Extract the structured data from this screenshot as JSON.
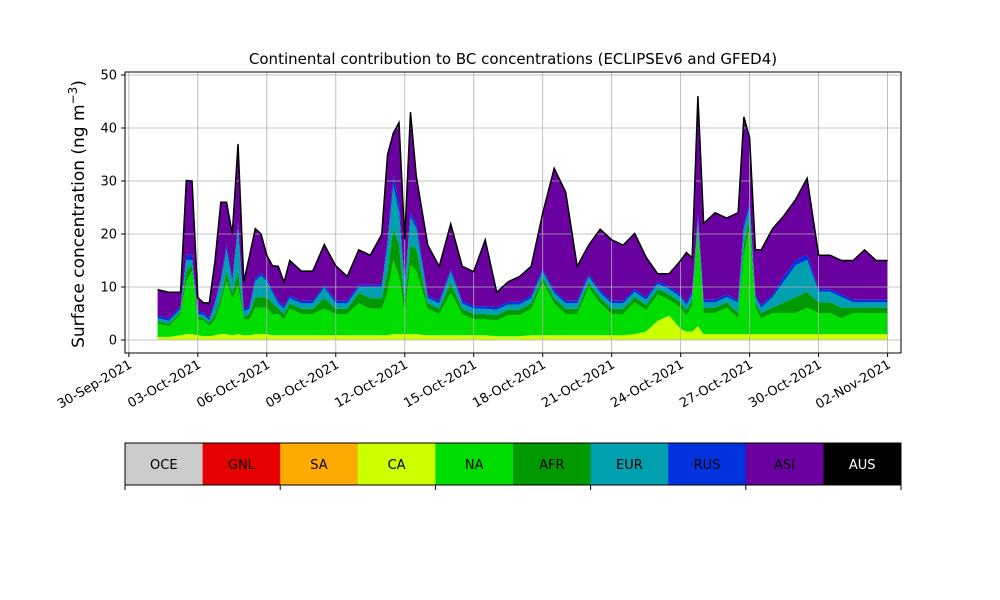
{
  "chart_data": {
    "type": "area",
    "stacked": true,
    "title": "Continental contribution to BC concentrations (ECLIPSEv6 and GFED4)",
    "ylabel": "Surface concentration (ng m",
    "ylabel_exp": "−3",
    "ylabel_close": ")",
    "xlabel": "",
    "ylim": [
      0,
      50
    ],
    "xlim": [
      "2021-09-29T20:00",
      "2021-11-02T14:00"
    ],
    "grid": true,
    "legend_position": "bottom-colorbar",
    "yticks": [
      0,
      10,
      20,
      30,
      40,
      50
    ],
    "xticks": [
      {
        "date": "2021-09-30",
        "label": "30-Sep-2021"
      },
      {
        "date": "2021-10-03",
        "label": "03-Oct-2021"
      },
      {
        "date": "2021-10-06",
        "label": "06-Oct-2021"
      },
      {
        "date": "2021-10-09",
        "label": "09-Oct-2021"
      },
      {
        "date": "2021-10-12",
        "label": "12-Oct-2021"
      },
      {
        "date": "2021-10-15",
        "label": "15-Oct-2021"
      },
      {
        "date": "2021-10-18",
        "label": "18-Oct-2021"
      },
      {
        "date": "2021-10-21",
        "label": "21-Oct-2021"
      },
      {
        "date": "2021-10-24",
        "label": "24-Oct-2021"
      },
      {
        "date": "2021-10-27",
        "label": "27-Oct-2021"
      },
      {
        "date": "2021-10-30",
        "label": "30-Oct-2021"
      },
      {
        "date": "2021-11-02",
        "label": "02-Nov-2021"
      }
    ],
    "x": [
      "2021-10-01T06:00",
      "2021-10-01T18:00",
      "2021-10-02T06:00",
      "2021-10-02T12:00",
      "2021-10-02T18:00",
      "2021-10-03T00:00",
      "2021-10-03T06:00",
      "2021-10-03T12:00",
      "2021-10-03T18:00",
      "2021-10-04T00:00",
      "2021-10-04T06:00",
      "2021-10-04T12:00",
      "2021-10-04T18:00",
      "2021-10-05T00:00",
      "2021-10-05T06:00",
      "2021-10-05T12:00",
      "2021-10-05T18:00",
      "2021-10-06T00:00",
      "2021-10-06T06:00",
      "2021-10-06T12:00",
      "2021-10-06T18:00",
      "2021-10-07T00:00",
      "2021-10-07T12:00",
      "2021-10-08T00:00",
      "2021-10-08T12:00",
      "2021-10-09T00:00",
      "2021-10-09T12:00",
      "2021-10-10T00:00",
      "2021-10-10T12:00",
      "2021-10-11T00:00",
      "2021-10-11T06:00",
      "2021-10-11T12:00",
      "2021-10-11T18:00",
      "2021-10-12T00:00",
      "2021-10-12T06:00",
      "2021-10-12T12:00",
      "2021-10-13T00:00",
      "2021-10-13T12:00",
      "2021-10-14T00:00",
      "2021-10-14T12:00",
      "2021-10-15T00:00",
      "2021-10-15T12:00",
      "2021-10-16T00:00",
      "2021-10-16T12:00",
      "2021-10-17T00:00",
      "2021-10-17T12:00",
      "2021-10-18T00:00",
      "2021-10-18T12:00",
      "2021-10-19T00:00",
      "2021-10-19T12:00",
      "2021-10-20T00:00",
      "2021-10-20T12:00",
      "2021-10-21T00:00",
      "2021-10-21T12:00",
      "2021-10-22T00:00",
      "2021-10-22T12:00",
      "2021-10-23T00:00",
      "2021-10-23T12:00",
      "2021-10-24T00:00",
      "2021-10-24T06:00",
      "2021-10-24T12:00",
      "2021-10-24T18:00",
      "2021-10-25T00:00",
      "2021-10-25T12:00",
      "2021-10-26T00:00",
      "2021-10-26T12:00",
      "2021-10-26T18:00",
      "2021-10-27T00:00",
      "2021-10-27T06:00",
      "2021-10-27T12:00",
      "2021-10-28T00:00",
      "2021-10-28T12:00",
      "2021-10-29T00:00",
      "2021-10-29T12:00",
      "2021-10-30T00:00",
      "2021-10-30T12:00",
      "2021-10-31T00:00",
      "2021-10-31T12:00",
      "2021-11-01T00:00",
      "2021-11-01T12:00",
      "2021-11-02T00:00"
    ],
    "series": [
      {
        "name": "OCE",
        "color": "#cccccc",
        "values": [
          0.1,
          0.1,
          0.1,
          0.1,
          0.1,
          0.1,
          0.1,
          0.1,
          0.1,
          0.1,
          0.1,
          0.1,
          0.1,
          0.1,
          0.1,
          0.1,
          0.1,
          0.1,
          0.1,
          0.1,
          0.1,
          0.1,
          0.1,
          0.1,
          0.1,
          0.1,
          0.1,
          0.1,
          0.1,
          0.1,
          0.1,
          0.1,
          0.1,
          0.1,
          0.1,
          0.1,
          0.1,
          0.1,
          0.1,
          0.1,
          0.1,
          0.1,
          0.1,
          0.1,
          0.1,
          0.1,
          0.1,
          0.1,
          0.1,
          0.1,
          0.1,
          0.1,
          0.1,
          0.1,
          0.1,
          0.1,
          0.1,
          0.1,
          0.1,
          0.1,
          0.1,
          0.1,
          0.1,
          0.1,
          0.1,
          0.1,
          0.1,
          0.1,
          0.1,
          0.1,
          0.1,
          0.1,
          0.1,
          0.1,
          0.1,
          0.1,
          0.1,
          0.1,
          0.1,
          0.1,
          0.1
        ]
      },
      {
        "name": "GNL",
        "color": "#e60000",
        "values": [
          0,
          0,
          0,
          0,
          0,
          0,
          0,
          0,
          0,
          0,
          0,
          0,
          0,
          0,
          0,
          0,
          0,
          0,
          0,
          0,
          0,
          0,
          0,
          0,
          0,
          0,
          0,
          0,
          0,
          0,
          0,
          0,
          0,
          0,
          0,
          0,
          0,
          0,
          0,
          0,
          0,
          0,
          0,
          0,
          0,
          0,
          0,
          0,
          0,
          0,
          0,
          0,
          0,
          0,
          0,
          0,
          0,
          0,
          0,
          0,
          0,
          0,
          0,
          0,
          0,
          0,
          0,
          0,
          0,
          0,
          0,
          0,
          0,
          0,
          0,
          0,
          0,
          0,
          0,
          0,
          0
        ]
      },
      {
        "name": "SA",
        "color": "#ffaa00",
        "values": [
          0,
          0,
          0,
          0,
          0,
          0,
          0,
          0,
          0,
          0,
          0,
          0,
          0,
          0,
          0,
          0,
          0,
          0,
          0,
          0,
          0,
          0,
          0,
          0,
          0,
          0,
          0,
          0,
          0,
          0,
          0,
          0,
          0,
          0,
          0,
          0,
          0,
          0,
          0,
          0,
          0,
          0,
          0,
          0,
          0,
          0,
          0,
          0,
          0,
          0,
          0,
          0,
          0,
          0,
          0,
          0,
          0,
          0,
          0,
          0,
          0,
          0,
          0,
          0,
          0,
          0,
          0,
          0,
          0,
          0,
          0,
          0,
          0,
          0,
          0,
          0,
          0,
          0,
          0,
          0,
          0
        ]
      },
      {
        "name": "CA",
        "color": "#ccff00",
        "values": [
          0.5,
          0.5,
          0.8,
          1,
          1,
          0.8,
          0.6,
          0.6,
          0.8,
          1,
          1,
          0.8,
          1,
          0.8,
          0.8,
          1,
          1,
          1,
          0.8,
          0.8,
          0.8,
          0.8,
          0.8,
          0.8,
          0.8,
          0.8,
          0.8,
          0.8,
          0.8,
          0.8,
          0.8,
          1,
          1,
          1,
          1,
          1,
          0.8,
          0.8,
          0.8,
          0.8,
          0.8,
          0.8,
          0.6,
          0.6,
          0.6,
          0.8,
          0.8,
          0.8,
          0.8,
          0.8,
          0.8,
          0.8,
          0.8,
          0.8,
          1,
          1.5,
          3.5,
          4.5,
          2,
          1.5,
          1.5,
          2.5,
          1,
          1,
          1,
          1,
          1,
          1,
          1,
          1,
          1,
          1,
          1,
          1,
          1,
          1,
          1,
          1,
          1,
          1,
          1
        ]
      },
      {
        "name": "NA",
        "color": "#00dd00",
        "values": [
          2.5,
          2,
          4,
          10,
          12,
          3,
          3,
          2,
          3,
          6,
          10,
          7,
          9,
          3,
          3,
          5,
          5,
          5,
          4,
          4,
          3,
          5,
          4,
          4,
          5,
          4,
          4,
          6,
          5,
          5,
          8,
          14,
          11,
          4,
          13,
          12,
          5,
          4,
          8,
          4,
          3,
          3,
          3,
          4,
          4,
          5,
          10,
          6,
          4,
          4,
          9,
          6,
          4,
          4,
          6,
          4,
          5,
          3,
          4,
          3,
          5,
          18,
          4,
          4,
          5,
          3,
          15,
          20,
          5,
          3,
          4,
          4,
          4,
          5,
          4,
          4,
          3,
          4,
          4,
          4,
          4
        ]
      },
      {
        "name": "AFR",
        "color": "#009900",
        "values": [
          0.5,
          0.5,
          0.5,
          2,
          1,
          0.5,
          0.5,
          0.5,
          1,
          1,
          2,
          1,
          3,
          0.5,
          1,
          2,
          2,
          2,
          2,
          1,
          1,
          1,
          1,
          1,
          2,
          1,
          1,
          2,
          2,
          2,
          4,
          6,
          6,
          2,
          4,
          4,
          1,
          1,
          2,
          1,
          1,
          1,
          1,
          1,
          1,
          1,
          1,
          1,
          1,
          1,
          1,
          1,
          1,
          1,
          1,
          1,
          1,
          1,
          1,
          1,
          1,
          1,
          1,
          1,
          1,
          1,
          2,
          2,
          1,
          1,
          1,
          2,
          3,
          3,
          2,
          2,
          2,
          1,
          1,
          1,
          1
        ]
      },
      {
        "name": "EUR",
        "color": "#00a0b0",
        "values": [
          0.5,
          0.5,
          0.5,
          2,
          1,
          0.5,
          0.5,
          0.5,
          2,
          3,
          4,
          2,
          8,
          1,
          1,
          3,
          4,
          3,
          2,
          1,
          1,
          1,
          1,
          1,
          2,
          1,
          1,
          1,
          2,
          2,
          5,
          8,
          6,
          3,
          5,
          4,
          1,
          1,
          2,
          1,
          1,
          1,
          1,
          1,
          1,
          1,
          1,
          1,
          1,
          1,
          1,
          1,
          1,
          1,
          1,
          1,
          1,
          1,
          1,
          1,
          1,
          1,
          1,
          1,
          1,
          2,
          3,
          2,
          1,
          1,
          2,
          4,
          6,
          6,
          2,
          2,
          2,
          1,
          1,
          1,
          1
        ]
      },
      {
        "name": "RUS",
        "color": "#0033dd",
        "values": [
          0.5,
          0.5,
          0.5,
          1,
          1,
          0.5,
          0.5,
          0.5,
          0.5,
          0.5,
          1,
          0.5,
          1,
          0.5,
          0.5,
          0.5,
          0.5,
          0.5,
          0.5,
          0.5,
          0.5,
          0.5,
          0.5,
          0.5,
          0.5,
          0.5,
          0.5,
          0.5,
          0.5,
          0.5,
          1,
          2,
          2,
          0.5,
          1,
          1,
          0.5,
          0.5,
          0.5,
          0.5,
          0.5,
          0.5,
          0.5,
          0.5,
          0.5,
          0.5,
          0.5,
          0.5,
          0.5,
          0.5,
          0.5,
          0.5,
          0.5,
          0.5,
          0.5,
          0.5,
          0.5,
          0.5,
          0.5,
          0.5,
          0.5,
          1,
          0.5,
          0.5,
          0.5,
          0.5,
          1,
          1,
          0.5,
          0.5,
          0.5,
          1,
          1,
          1,
          0.5,
          0.5,
          0.5,
          0.5,
          0.5,
          0.5,
          0.5
        ]
      },
      {
        "name": "ASI",
        "color": "#6a00a0",
        "values": [
          4.9,
          4.9,
          2.6,
          14,
          13.9,
          2.6,
          1.8,
          2.8,
          7.6,
          14.4,
          7.9,
          8.6,
          14.9,
          5.1,
          9.5,
          9.4,
          7.4,
          4.4,
          4.6,
          6.5,
          4.5,
          6.6,
          5.6,
          5.6,
          7.6,
          6.6,
          4.6,
          6.6,
          5.6,
          9.5,
          16,
          7.9,
          14.9,
          8.4,
          18.9,
          8.9,
          9.5,
          6.5,
          8.5,
          6.5,
          6.5,
          12.5,
          2.8,
          3.8,
          4.8,
          5.5,
          10.5,
          23,
          20.5,
          6.5,
          5.5,
          11.5,
          11.5,
          10.5,
          10.5,
          7.5,
          1.4,
          2.4,
          6.4,
          9.4,
          6.4,
          22.4,
          14.4,
          16.4,
          14.4,
          16.4,
          20,
          12,
          8.4,
          10.4,
          12.4,
          11.4,
          11.4,
          14.4,
          6.4,
          6.4,
          6.4,
          7.4,
          9.4,
          7.4,
          7.4
        ]
      },
      {
        "name": "AUS",
        "color": "#000000",
        "values": [
          0,
          0,
          0,
          0,
          0,
          0,
          0,
          0,
          0,
          0,
          0,
          0,
          0,
          0,
          0,
          0,
          0,
          0,
          0,
          0,
          0,
          0,
          0,
          0,
          0,
          0,
          0,
          0,
          0,
          0,
          0,
          0,
          0,
          0,
          0,
          0,
          0,
          0,
          0,
          0,
          0,
          0,
          0,
          0,
          0,
          0,
          0,
          0,
          0,
          0,
          0,
          0,
          0,
          0,
          0,
          0,
          0,
          0,
          0,
          0,
          0,
          0,
          0,
          0,
          0,
          0,
          0,
          0,
          0,
          0,
          0,
          0,
          0,
          0,
          0,
          0,
          0,
          0,
          0,
          0,
          0
        ]
      }
    ]
  }
}
